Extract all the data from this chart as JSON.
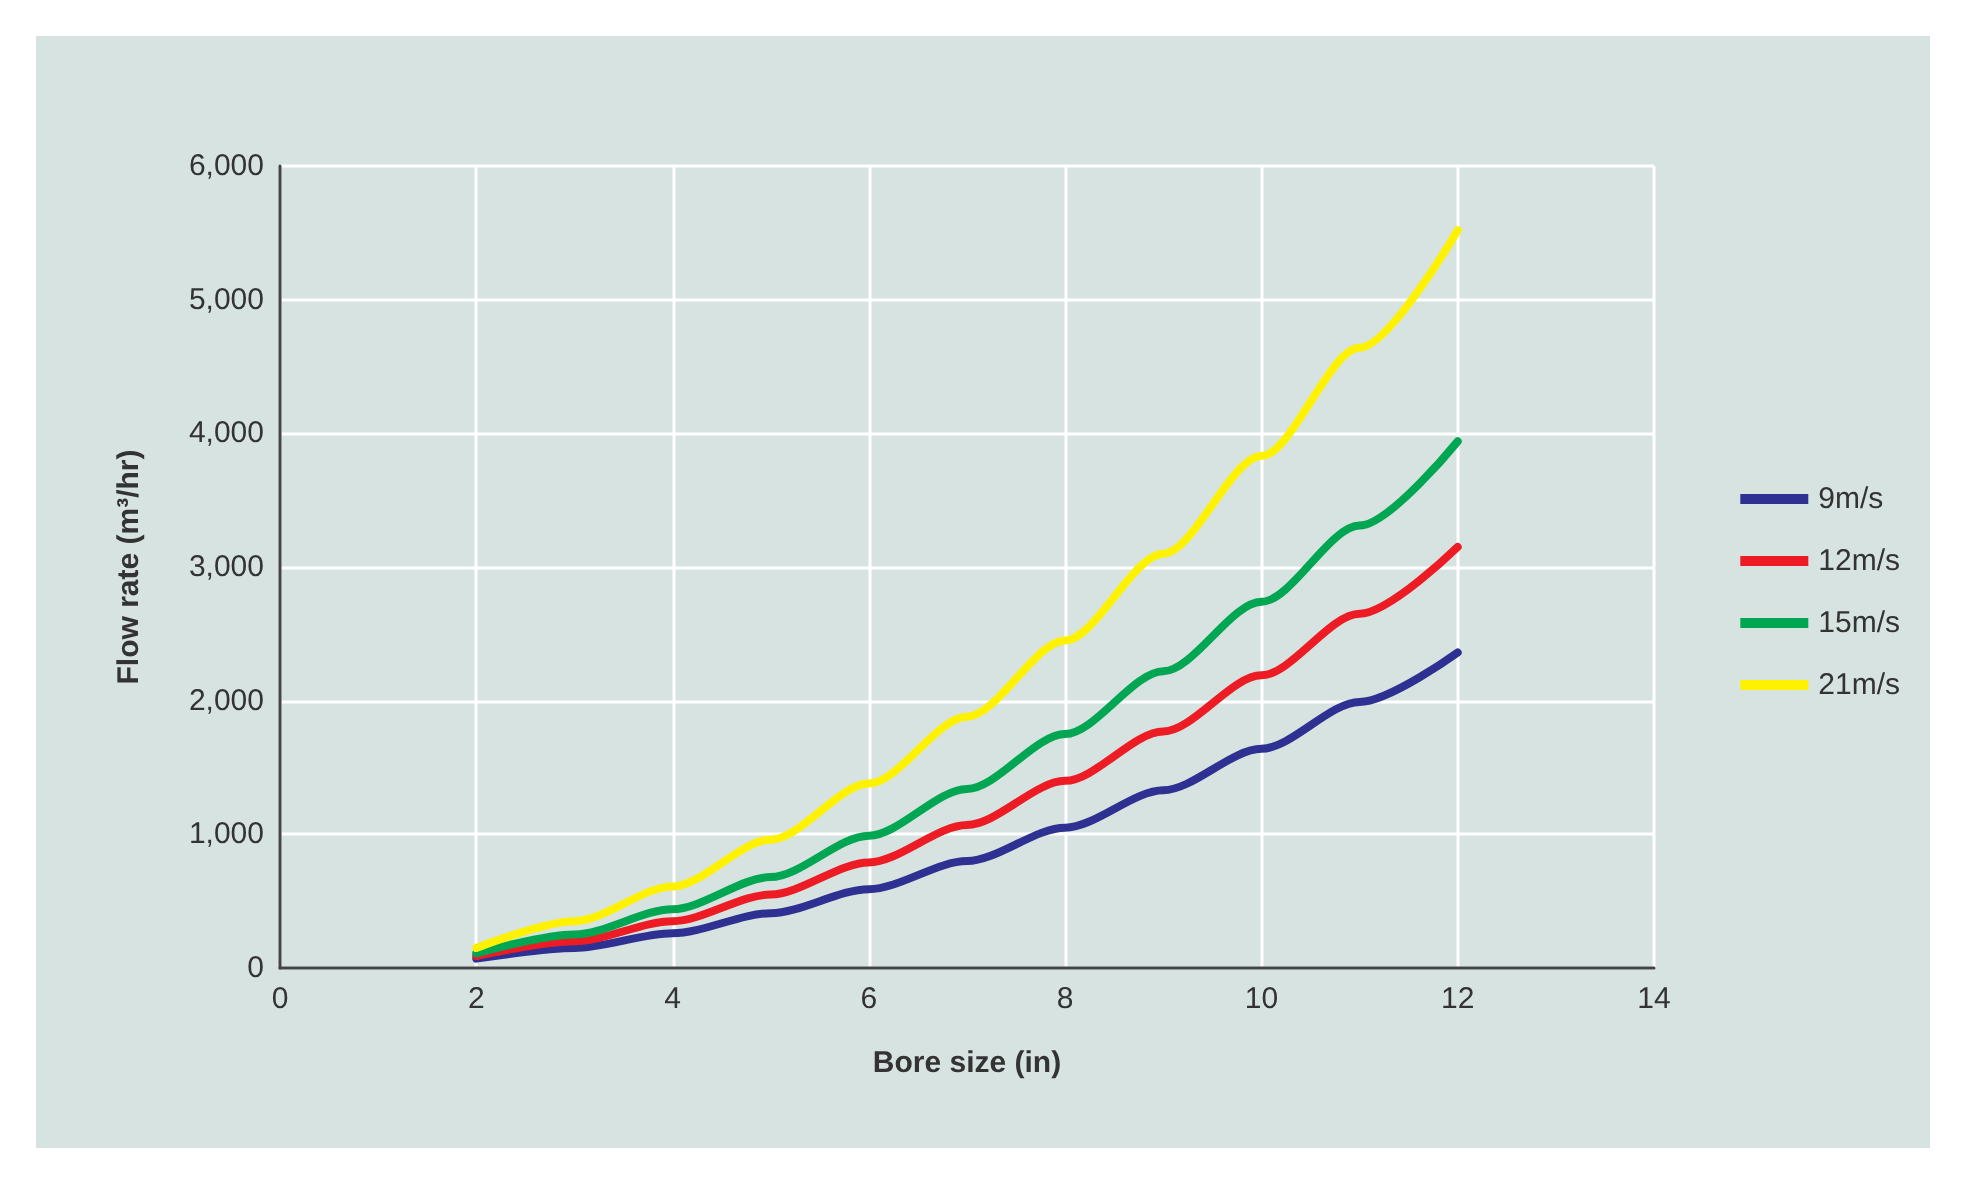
{
  "chart_data": {
    "type": "line",
    "xlabel": "Bore size (in)",
    "ylabel": "Flow rate (m³/hr)",
    "x": [
      2,
      3,
      4,
      5,
      6,
      7,
      8,
      9,
      10,
      11,
      12
    ],
    "series": [
      {
        "name": "9m/s",
        "color": "#2e3192",
        "values": [
          70,
          150,
          260,
          410,
          590,
          800,
          1050,
          1330,
          1640,
          1990,
          2360
        ]
      },
      {
        "name": "12m/s",
        "color": "#ed1c24",
        "values": [
          90,
          200,
          350,
          550,
          790,
          1070,
          1400,
          1770,
          2190,
          2650,
          3150
        ]
      },
      {
        "name": "15m/s",
        "color": "#00a651",
        "values": [
          110,
          250,
          440,
          680,
          990,
          1340,
          1750,
          2220,
          2740,
          3310,
          3940
        ]
      },
      {
        "name": "21m/s",
        "color": "#fff200",
        "values": [
          150,
          350,
          610,
          960,
          1380,
          1880,
          2450,
          3100,
          3830,
          4640,
          5520
        ]
      }
    ],
    "xlim": [
      0,
      14
    ],
    "xticks": [
      0,
      2,
      4,
      6,
      8,
      10,
      12,
      14
    ],
    "ylim": [
      0,
      6000
    ],
    "yticks": [
      0,
      {
        "value": 1000,
        "label": "1,000"
      },
      {
        "value": 2000,
        "label": "2,000"
      },
      {
        "value": 3000,
        "label": "3,000"
      },
      {
        "value": 4000,
        "label": "4,000"
      },
      {
        "value": 5000,
        "label": "5,000"
      },
      {
        "value": 6000,
        "label": "6,000"
      }
    ],
    "grid": true,
    "legend": "right",
    "marker": "none",
    "line_style": "solid"
  }
}
